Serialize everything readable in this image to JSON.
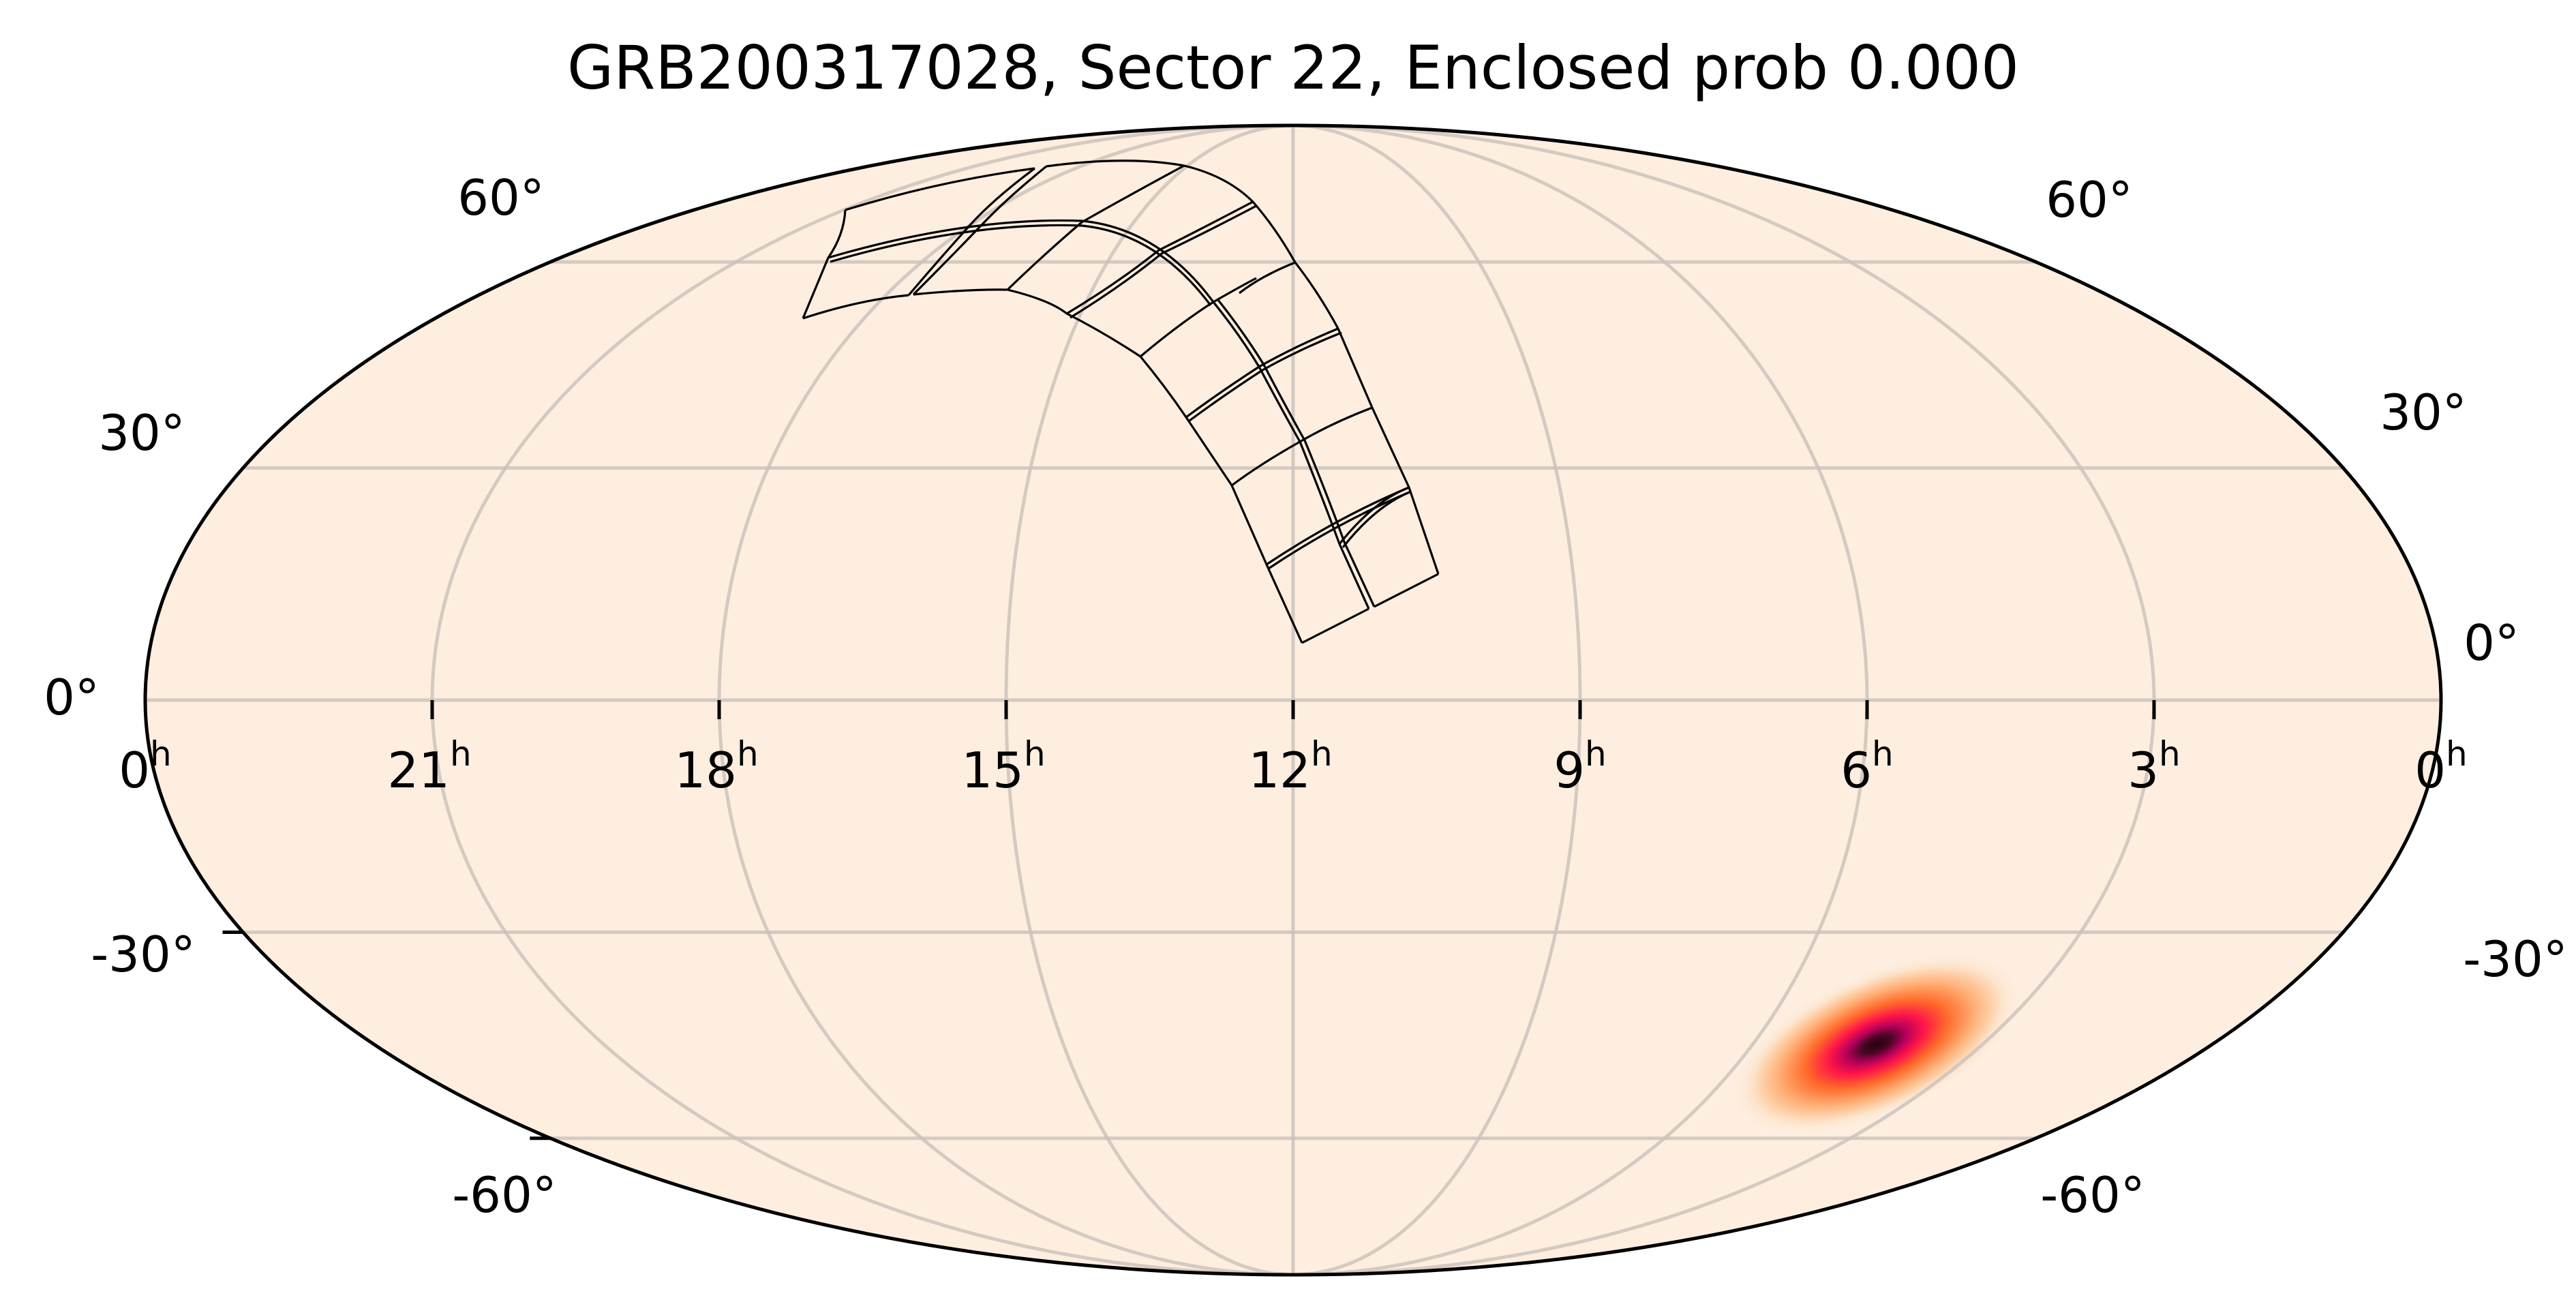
{
  "chart_data": {
    "type": "heatmap",
    "projection": "mollweide",
    "title": "GRB200317028, Sector 22, Enclosed prob 0.000",
    "xlabel": "",
    "ylabel": "",
    "grid": true,
    "x_ticks": [
      "0h",
      "21h",
      "18h",
      "15h",
      "12h",
      "9h",
      "6h",
      "3h",
      "0h"
    ],
    "x_tick_values_hours": [
      24,
      21,
      18,
      15,
      12,
      9,
      6,
      3,
      0
    ],
    "y_ticks_left": [
      "60°",
      "30°",
      "0°",
      "-30°",
      "-60°"
    ],
    "y_ticks_right": [
      "60°",
      "30°",
      "0°",
      "-30°",
      "-60°"
    ],
    "y_tick_values_deg": [
      60,
      30,
      0,
      -30,
      -60
    ],
    "probability_map": {
      "description": "GRB localization probability density (single compact peak)",
      "peak_ra_hours": 5.7,
      "peak_dec_deg": -47,
      "colormap": "magma_r-like",
      "background_color": "#fdeee0"
    },
    "tess_sector": 22,
    "enclosed_probability": 0.0,
    "footprint": {
      "description": "TESS Sector 22 camera/CCD footprints (4 cameras x 4 CCDs) in northern sky, RA ~9.5h to ~19.5h",
      "color": "#000000"
    }
  },
  "title": "GRB200317028, Sector 22, Enclosed prob 0.000",
  "axes": {
    "x_labels": [
      {
        "main": "0",
        "sup": "h"
      },
      {
        "main": "21",
        "sup": "h"
      },
      {
        "main": "18",
        "sup": "h"
      },
      {
        "main": "15",
        "sup": "h"
      },
      {
        "main": "12",
        "sup": "h"
      },
      {
        "main": "9",
        "sup": "h"
      },
      {
        "main": "6",
        "sup": "h"
      },
      {
        "main": "3",
        "sup": "h"
      },
      {
        "main": "0",
        "sup": "h"
      }
    ],
    "left_labels": [
      "60°",
      "30°",
      "0°",
      "-30°",
      "-60°"
    ],
    "right_labels": [
      "60°",
      "30°",
      "0°",
      "-30°",
      "-60°"
    ]
  },
  "colors": {
    "map_fill": "#fdeee0",
    "grid": "#d5ccc6",
    "outline": "#000000",
    "blob_stops": [
      "#2a0010",
      "#5c0a2e",
      "#b5005a",
      "#ff1449",
      "#ff6a2a",
      "#ffb37a",
      "#fde2c8"
    ]
  }
}
